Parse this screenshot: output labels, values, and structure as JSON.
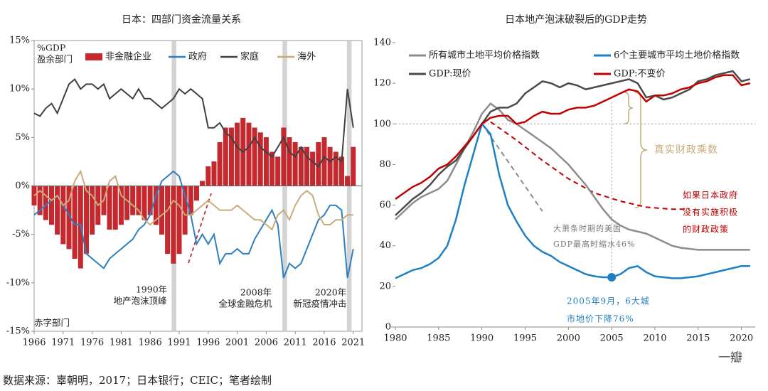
{
  "chart_data": [
    {
      "type": "combo",
      "title": "日本：四部门资金流量关系",
      "x": [
        1966,
        1967,
        1968,
        1969,
        1970,
        1971,
        1972,
        1973,
        1974,
        1975,
        1976,
        1977,
        1978,
        1979,
        1980,
        1981,
        1982,
        1983,
        1984,
        1985,
        1986,
        1987,
        1988,
        1989,
        1990,
        1991,
        1992,
        1993,
        1994,
        1995,
        1996,
        1997,
        1998,
        1999,
        2000,
        2001,
        2002,
        2003,
        2004,
        2005,
        2006,
        2007,
        2008,
        2009,
        2010,
        2011,
        2012,
        2013,
        2014,
        2015,
        2016,
        2017,
        2018,
        2019,
        2020,
        2021
      ],
      "series": [
        {
          "name": "非金融企业",
          "kind": "bar",
          "color": "#c8282d",
          "values": [
            -2,
            -3,
            -3.5,
            -4,
            -5,
            -6,
            -6.5,
            -7.5,
            -8.5,
            -7,
            -5,
            -4,
            -3,
            -4.5,
            -4.5,
            -4,
            -3.5,
            -3,
            -3,
            -3.5,
            -3,
            -4,
            -5,
            -7,
            -8,
            -7,
            -5,
            -3,
            -1.5,
            0.5,
            2,
            2.5,
            4.5,
            6,
            6,
            6.5,
            7,
            6.5,
            6,
            5.5,
            5,
            3.5,
            3,
            6,
            5,
            4.5,
            4,
            4,
            3.5,
            4.5,
            5,
            4,
            3.5,
            3,
            1,
            4
          ]
        },
        {
          "name": "政府",
          "kind": "line",
          "color": "#2e7fc1",
          "values": [
            -3,
            -2.5,
            -2,
            -1.5,
            -1,
            -2,
            -3,
            -4,
            -4,
            -7,
            -7.5,
            -8,
            -8.5,
            -7.5,
            -7,
            -6.5,
            -6,
            -5.5,
            -4.5,
            -4,
            -3,
            -1,
            0.5,
            1,
            1.5,
            1,
            -1,
            -3,
            -6,
            -5,
            -6,
            -5,
            -8,
            -7,
            -7,
            -6.5,
            -7,
            -7,
            -5.5,
            -4.5,
            -3.5,
            -2.5,
            -4,
            -9.5,
            -8,
            -8.5,
            -8,
            -6.5,
            -5,
            -3.5,
            -3,
            -2,
            -2,
            -2.5,
            -9.5,
            -6.5
          ]
        },
        {
          "name": "家庭",
          "kind": "line",
          "color": "#404040",
          "values": [
            7.5,
            7.2,
            8,
            8.5,
            7.5,
            9,
            10.5,
            11,
            10,
            10.5,
            10.5,
            10,
            10.5,
            9,
            9.5,
            10,
            9.5,
            9,
            10,
            9,
            9,
            8.5,
            8,
            8.5,
            9,
            10,
            9.5,
            10,
            9.5,
            9,
            6,
            6,
            6.5,
            5.5,
            5,
            4,
            3.5,
            4,
            5,
            4,
            3.5,
            3,
            4,
            5,
            3.5,
            3,
            4,
            3,
            2.5,
            2,
            3,
            2.5,
            3,
            2.5,
            10,
            6
          ]
        },
        {
          "name": "海外",
          "kind": "line",
          "color": "#c8ab78",
          "values": [
            -1,
            -0.5,
            -1,
            -1.5,
            -1,
            -2,
            -1.5,
            0.5,
            1.5,
            -0.5,
            -1,
            -2,
            -1.5,
            0.5,
            1,
            -1,
            -1.5,
            -2,
            -2.5,
            -3.5,
            -4,
            -3.5,
            -3,
            -2.5,
            -1.5,
            -2,
            -3,
            -3,
            -2.5,
            -2,
            -1.5,
            -2,
            -2.5,
            -2.5,
            -2.5,
            -2,
            -2.5,
            -3,
            -3.5,
            -3.5,
            -4,
            -4.5,
            -3,
            -2.5,
            -3.5,
            -2,
            -1,
            -0.5,
            -1,
            -3,
            -4,
            -4,
            -3.5,
            -3.5,
            -3,
            -3
          ]
        }
      ],
      "xlim": [
        1966,
        2022.5
      ],
      "xticks": [
        1966,
        1971,
        1976,
        1981,
        1986,
        1991,
        1996,
        2001,
        2006,
        2011,
        2016,
        2021
      ],
      "ylim": [
        -15,
        15
      ],
      "yticks": [
        {
          "value": -15,
          "label": "-15%"
        },
        {
          "value": -10,
          "label": "-10%"
        },
        {
          "value": -5,
          "label": "-5%"
        },
        {
          "value": 0,
          "label": "0%"
        },
        {
          "value": 5,
          "label": "5%"
        },
        {
          "value": 10,
          "label": "10%"
        },
        {
          "value": 15,
          "label": "15%"
        }
      ],
      "shaded_periods": [
        [
          1989.7,
          1990.5
        ],
        [
          2008.8,
          2009.6
        ],
        [
          2019.9,
          2020.7
        ]
      ],
      "annotations": [
        {
          "text": "%GDP"
        },
        {
          "text": "盈余部门"
        },
        {
          "text": "赤字部门"
        },
        {
          "text": "1990年"
        },
        {
          "text": "地产泡沫顶峰"
        },
        {
          "text": "2008年"
        },
        {
          "text": "全球金融危机"
        },
        {
          "text": "2020年"
        },
        {
          "text": "新冠疫情冲击"
        }
      ]
    },
    {
      "type": "line",
      "title": "日本地产泡沫破裂后的GDP走势",
      "x": [
        1980,
        1981,
        1982,
        1983,
        1984,
        1985,
        1986,
        1987,
        1988,
        1989,
        1990,
        1991,
        1992,
        1993,
        1994,
        1995,
        1996,
        1997,
        1998,
        1999,
        2000,
        2001,
        2002,
        2003,
        2004,
        2005,
        2006,
        2007,
        2008,
        2009,
        2010,
        2011,
        2012,
        2013,
        2014,
        2015,
        2016,
        2017,
        2018,
        2019,
        2020,
        2021
      ],
      "series": [
        {
          "name": "所有城市土地平均价格指数",
          "color": "#8c8c8c",
          "values": [
            53,
            57,
            61,
            64,
            66,
            68,
            72,
            80,
            88,
            96,
            105,
            110,
            107,
            102,
            100,
            97,
            94,
            91,
            88,
            84,
            80,
            75,
            70,
            64,
            58,
            53,
            50,
            48,
            47,
            46,
            44,
            42,
            40,
            39,
            38.5,
            38,
            38,
            38,
            38,
            38,
            38,
            38
          ]
        },
        {
          "name": "6个主要城市平均土地价格指数",
          "color": "#1f7fc4",
          "values": [
            24,
            26,
            28,
            29,
            31,
            34,
            40,
            53,
            70,
            85,
            100,
            95,
            75,
            60,
            52,
            45,
            40,
            37,
            35,
            32,
            30,
            28,
            26,
            25,
            24.5,
            24.5,
            26,
            29,
            30,
            27,
            25,
            24.5,
            24,
            24,
            24.5,
            25,
            26,
            27,
            28,
            29,
            30,
            30
          ]
        },
        {
          "name": "GDP:现价",
          "color": "#4a4a4a",
          "values": [
            55,
            59,
            63,
            66,
            70,
            75,
            79,
            82,
            88,
            94,
            100,
            106,
            108,
            108,
            110,
            115,
            118,
            121,
            120,
            118,
            120,
            119,
            117,
            118,
            119,
            120,
            121,
            122,
            120,
            113,
            114,
            112,
            113,
            115,
            117,
            121,
            122,
            124,
            125,
            126,
            121,
            122
          ]
        },
        {
          "name": "GDP:不变价",
          "color": "#c00000",
          "values": [
            63,
            66,
            69,
            71,
            74,
            78,
            80,
            84,
            89,
            94,
            100,
            103,
            104,
            104,
            100,
            101,
            104,
            106,
            105,
            105,
            107,
            108,
            108,
            109,
            111,
            113,
            115,
            117,
            116,
            111,
            114,
            114,
            115,
            117,
            118,
            120,
            121,
            123,
            124,
            124,
            119,
            120
          ]
        }
      ],
      "reference_curves": [
        {
          "color": "#c00000",
          "x": [
            1991,
            1994,
            1997,
            2000,
            2003,
            2006,
            2009,
            2012,
            2014
          ],
          "values": [
            101,
            92,
            82,
            73,
            66,
            62,
            59,
            58,
            58
          ]
        },
        {
          "color": "#8c8c8c",
          "x": [
            1990,
            1997
          ],
          "values": [
            100,
            57
          ]
        }
      ],
      "reference_point": {
        "x": 2005,
        "value": 24.5,
        "color": "#1f7fc4"
      },
      "hline": 100,
      "vline": 2005,
      "xlim": [
        1980,
        2022
      ],
      "xticks": [
        1980,
        1985,
        1990,
        1995,
        2000,
        2005,
        2010,
        2015,
        2020
      ],
      "ylim": [
        0,
        140
      ],
      "yticks": [
        0,
        20,
        40,
        60,
        80,
        100,
        120,
        140
      ],
      "annotations": [
        {
          "text": "真实财政乘数"
        },
        {
          "text": "如果日本政府"
        },
        {
          "text": "没有实施积极"
        },
        {
          "text": "的财政政策"
        },
        {
          "text": "大萧条时期的美国"
        },
        {
          "text": "GDP最高时缩水46%"
        },
        {
          "text": "2005年9月，6大城"
        },
        {
          "text": "市地价下降76%"
        }
      ]
    }
  ],
  "footer": "数据来源：辜朝明，2017；日本银行；CEIC；笔者绘制",
  "watermark": "一瓣"
}
